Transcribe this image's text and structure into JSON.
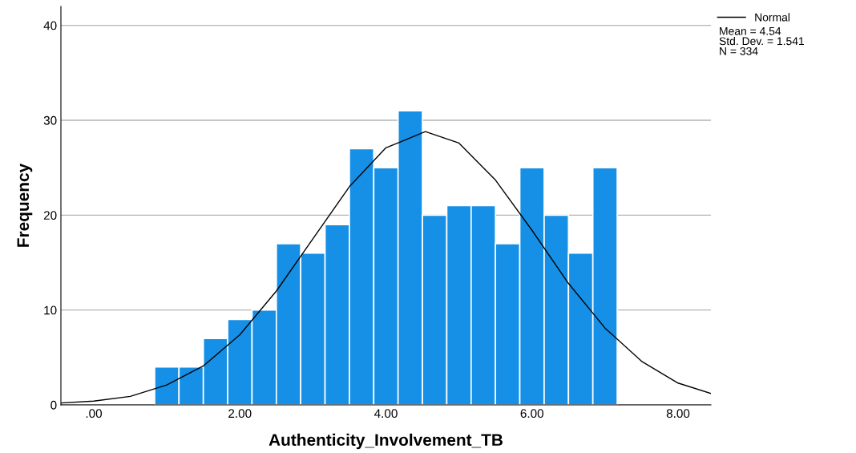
{
  "chart_data": {
    "type": "histogram",
    "xlabel": "Authenticity_Involvement_TB",
    "ylabel": "Frequency",
    "bins": [
      0.8333,
      1.1667,
      1.5,
      1.8333,
      2.1667,
      2.5,
      2.8333,
      3.1667,
      3.5,
      3.8333,
      4.1667,
      4.5,
      4.8333,
      5.1667,
      5.5,
      5.8333,
      6.1667,
      6.5,
      6.8333,
      7.1667
    ],
    "values": [
      4,
      4,
      7,
      9,
      10,
      17,
      16,
      19,
      27,
      25,
      31,
      20,
      21,
      21,
      17,
      25,
      20,
      16,
      25
    ],
    "color": "#1590e6",
    "series": [
      {
        "name": "Normal",
        "type": "line",
        "color": "#000000",
        "x": [
          -0.45,
          0,
          0.5,
          1,
          1.5,
          2,
          2.5,
          3,
          3.5,
          4,
          4.54,
          5,
          5.5,
          6,
          6.5,
          7,
          7.5,
          8,
          8.45
        ],
        "values": [
          0.2,
          0.4,
          0.9,
          2.1,
          4.1,
          7.4,
          12.0,
          17.5,
          23.0,
          27.1,
          28.8,
          27.6,
          23.7,
          18.4,
          12.8,
          8.1,
          4.6,
          2.3,
          1.2
        ]
      }
    ],
    "xlim": [
      -0.45,
      8.45
    ],
    "ylim": [
      0,
      42
    ],
    "xticks": [
      {
        "value": 0,
        "label": ".00"
      },
      {
        "value": 2,
        "label": "2.00"
      },
      {
        "value": 4,
        "label": "4.00"
      },
      {
        "value": 6,
        "label": "6.00"
      },
      {
        "value": 8,
        "label": "8.00"
      }
    ],
    "yticks": [
      0,
      10,
      20,
      30,
      40
    ],
    "grid": "y",
    "legend": "top right",
    "annotations": [
      "Mean = 4.54",
      "Std. Dev. = 1.541",
      "N = 334"
    ]
  }
}
